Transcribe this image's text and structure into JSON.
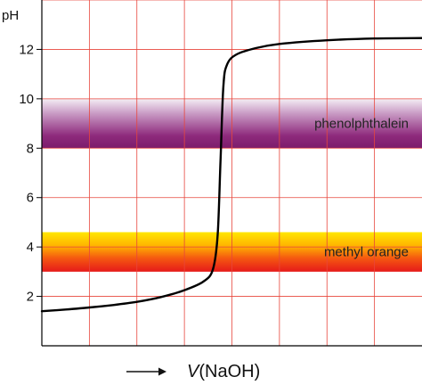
{
  "chart_data": {
    "type": "line",
    "ylabel": "pH",
    "xlabel_var": "V",
    "xlabel_rest": "(NaOH)",
    "ylim": [
      0,
      14
    ],
    "xlim": [
      0,
      4
    ],
    "yticks": [
      2,
      4,
      6,
      8,
      10,
      12
    ],
    "ytick_labels": [
      "2",
      "4",
      "6",
      "8",
      "10",
      "12"
    ],
    "grid": true,
    "grid_color": "#e8463c",
    "line_color": "#000000",
    "series": [
      {
        "values": [
          [
            0.0,
            1.4
          ],
          [
            0.25,
            1.47
          ],
          [
            0.5,
            1.55
          ],
          [
            0.75,
            1.65
          ],
          [
            1.0,
            1.78
          ],
          [
            1.25,
            1.97
          ],
          [
            1.5,
            2.25
          ],
          [
            1.7,
            2.6
          ],
          [
            1.8,
            3.1
          ],
          [
            1.85,
            4.5
          ],
          [
            1.88,
            7.5
          ],
          [
            1.91,
            10.5
          ],
          [
            1.95,
            11.4
          ],
          [
            2.05,
            11.8
          ],
          [
            2.25,
            12.05
          ],
          [
            2.5,
            12.22
          ],
          [
            3.0,
            12.37
          ],
          [
            3.5,
            12.44
          ],
          [
            4.0,
            12.46
          ]
        ]
      }
    ],
    "bands": [
      {
        "label": "phenolphthalein",
        "y_from": 8.0,
        "y_to": 10.0,
        "colors": [
          "#f4eef4",
          "#c89ac4",
          "#8e2a7c",
          "#7c1c6c"
        ]
      },
      {
        "label": "methyl orange",
        "y_from": 3.0,
        "y_to": 4.6,
        "colors": [
          "#ffe700",
          "#ffb300",
          "#f55a10",
          "#e61a1a"
        ]
      }
    ]
  }
}
